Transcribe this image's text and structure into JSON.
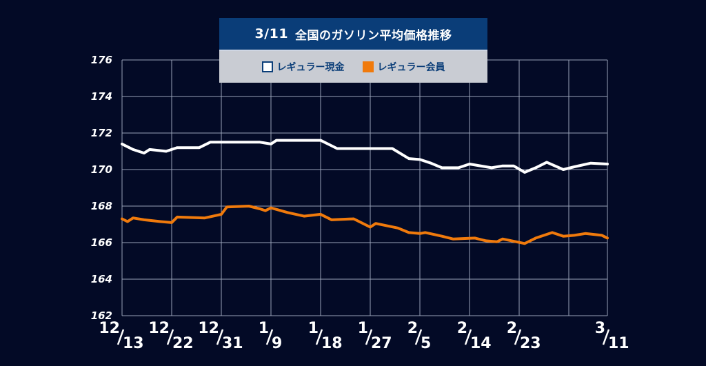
{
  "title": {
    "date": "3/11",
    "text": "全国のガソリン平均価格推移"
  },
  "legend": [
    {
      "label": "レギュラー現金",
      "color": "#ffffff"
    },
    {
      "label": "レギュラー会員",
      "color": "#f07a0c"
    }
  ],
  "chart_data": {
    "type": "line",
    "title": "3/11 全国のガソリン平均価格推移",
    "xlabel": "",
    "ylabel": "",
    "ylim": [
      162,
      176
    ],
    "yticks": [
      162,
      164,
      166,
      168,
      170,
      172,
      174,
      176
    ],
    "xlim": [
      0,
      88
    ],
    "xticks": [
      {
        "x": 0,
        "month": "12",
        "day": "13"
      },
      {
        "x": 9,
        "month": "12",
        "day": "22"
      },
      {
        "x": 18,
        "month": "12",
        "day": "31"
      },
      {
        "x": 27,
        "month": "1",
        "day": "9"
      },
      {
        "x": 36,
        "month": "1",
        "day": "18"
      },
      {
        "x": 45,
        "month": "1",
        "day": "27"
      },
      {
        "x": 54,
        "month": "2",
        "day": "5"
      },
      {
        "x": 63,
        "month": "2",
        "day": "14"
      },
      {
        "x": 72,
        "month": "2",
        "day": "23"
      },
      {
        "x": 88,
        "month": "3",
        "day": "11"
      }
    ],
    "grid": true,
    "series": [
      {
        "name": "レギュラー現金",
        "color": "#ffffff",
        "points": [
          [
            0,
            171.4
          ],
          [
            2,
            171.1
          ],
          [
            4,
            170.9
          ],
          [
            5,
            171.1
          ],
          [
            8,
            171.0
          ],
          [
            10,
            171.2
          ],
          [
            14,
            171.2
          ],
          [
            16,
            171.5
          ],
          [
            21,
            171.5
          ],
          [
            25,
            171.5
          ],
          [
            27,
            171.4
          ],
          [
            28,
            171.6
          ],
          [
            32,
            171.6
          ],
          [
            35,
            171.6
          ],
          [
            36,
            171.6
          ],
          [
            38,
            171.3
          ],
          [
            39,
            171.15
          ],
          [
            42,
            171.15
          ],
          [
            45,
            171.15
          ],
          [
            48,
            171.15
          ],
          [
            49,
            171.15
          ],
          [
            52,
            170.6
          ],
          [
            54,
            170.55
          ],
          [
            56,
            170.35
          ],
          [
            58,
            170.1
          ],
          [
            61,
            170.1
          ],
          [
            63,
            170.3
          ],
          [
            67,
            170.1
          ],
          [
            69,
            170.2
          ],
          [
            71,
            170.2
          ],
          [
            73,
            169.85
          ],
          [
            75,
            170.1
          ],
          [
            77,
            170.4
          ],
          [
            80,
            170.0
          ],
          [
            82,
            170.15
          ],
          [
            85,
            170.35
          ],
          [
            88,
            170.3
          ]
        ]
      },
      {
        "name": "レギュラー会員",
        "color": "#f07a0c",
        "points": [
          [
            0,
            167.3
          ],
          [
            1,
            167.15
          ],
          [
            2,
            167.35
          ],
          [
            4,
            167.25
          ],
          [
            7,
            167.15
          ],
          [
            9,
            167.1
          ],
          [
            10,
            167.4
          ],
          [
            15,
            167.35
          ],
          [
            18,
            167.55
          ],
          [
            19,
            167.95
          ],
          [
            23,
            168.0
          ],
          [
            25,
            167.85
          ],
          [
            26,
            167.75
          ],
          [
            27,
            167.9
          ],
          [
            30,
            167.65
          ],
          [
            33,
            167.45
          ],
          [
            36,
            167.55
          ],
          [
            38,
            167.25
          ],
          [
            42,
            167.3
          ],
          [
            45,
            166.85
          ],
          [
            46,
            167.05
          ],
          [
            50,
            166.8
          ],
          [
            52,
            166.55
          ],
          [
            54,
            166.5
          ],
          [
            55,
            166.55
          ],
          [
            58,
            166.35
          ],
          [
            60,
            166.2
          ],
          [
            64,
            166.25
          ],
          [
            66,
            166.1
          ],
          [
            68,
            166.05
          ],
          [
            69,
            166.2
          ],
          [
            73,
            165.95
          ],
          [
            75,
            166.25
          ],
          [
            78,
            166.55
          ],
          [
            80,
            166.35
          ],
          [
            82,
            166.4
          ],
          [
            84,
            166.5
          ],
          [
            87,
            166.4
          ],
          [
            88,
            166.25
          ]
        ]
      }
    ]
  }
}
